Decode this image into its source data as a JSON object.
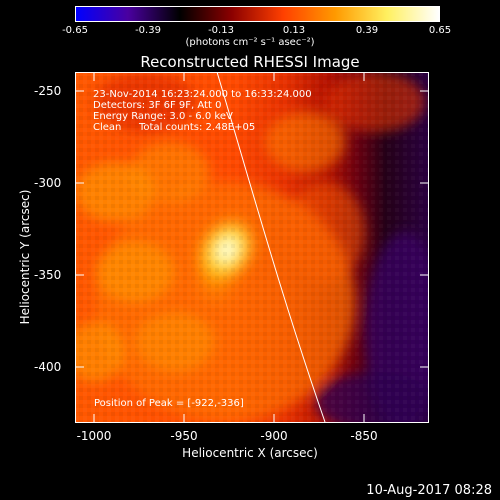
{
  "colorbar": {
    "ticks": [
      "-0.65",
      "-0.39",
      "-0.13",
      "0.13",
      "0.39",
      "0.65"
    ],
    "units": "(photons cm⁻² s⁻¹ asec⁻²)",
    "colors": [
      "#0000ff",
      "#4a00a0",
      "#000000",
      "#8b0000",
      "#ff4000",
      "#ff9a00",
      "#fff060",
      "#ffffff"
    ]
  },
  "title": "Reconstructed RHESSI Image",
  "overlay": {
    "time_range": "23-Nov-2014 16:23:24.000 to 16:33:24.000",
    "detectors": "Detectors: 3F 6F 9F, Att 0",
    "energy": "Energy Range: 3.0 - 6.0 keV",
    "method": "Clean",
    "counts": "Total counts: 2.48E+05",
    "peak": "Position of Peak = [-922,-336]"
  },
  "axes": {
    "x_label": "Heliocentric X (arcsec)",
    "y_label": "Heliocentric Y (arcsec)",
    "x_ticks": [
      "-1000",
      "-950",
      "-900",
      "-850"
    ],
    "y_ticks": [
      "-250",
      "-300",
      "-350",
      "-400"
    ],
    "x_range": [
      -1005,
      -812
    ],
    "y_range": [
      -240,
      -432
    ]
  },
  "footer": {
    "date": "10-Aug-2017 08:28"
  },
  "image": {
    "peak_x": -922,
    "peak_y": -336
  }
}
